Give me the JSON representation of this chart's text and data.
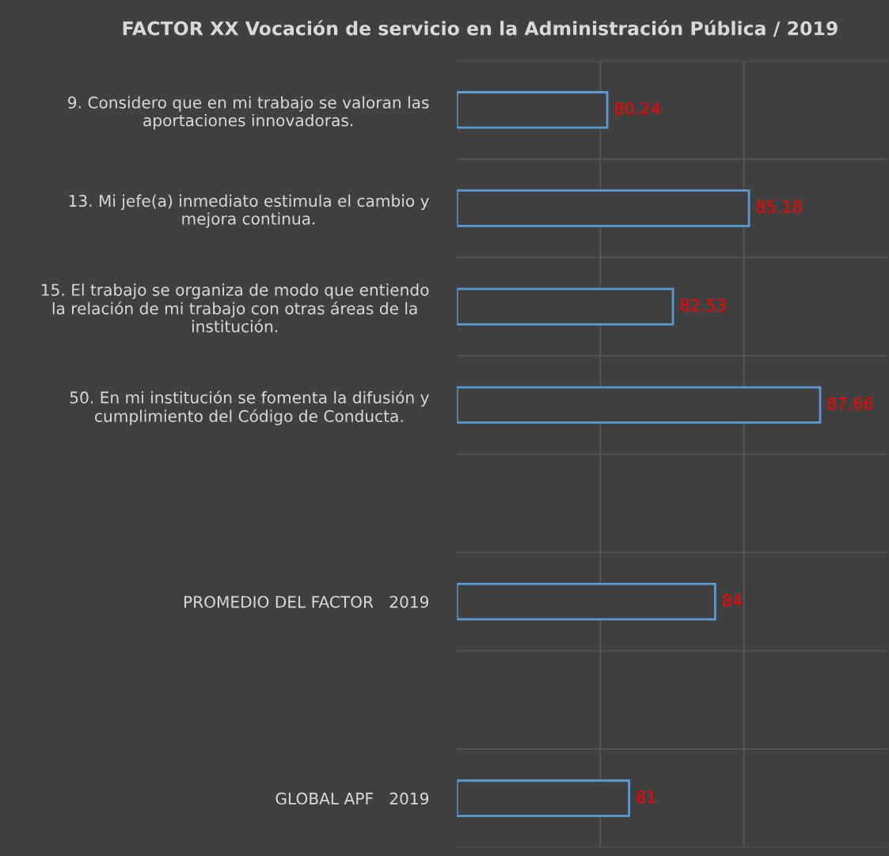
{
  "chart_data": {
    "type": "bar",
    "orientation": "horizontal",
    "title": "FACTOR XX Vocación de servicio en la Administración Pública / 2019",
    "categories": [
      "9. Considero que en mi trabajo se valoran las\naportaciones innovadoras.",
      "13. Mi jefe(a) inmediato estimula el cambio y\nmejora continua.",
      "15. El trabajo se organiza de modo que entiendo\nla relación de mi trabajo con otras áreas de la\ninstitución.",
      "50. En mi institución se fomenta la difusión y\ncumplimiento del Código de Conducta.",
      null,
      "PROMEDIO DEL FACTOR   2019",
      null,
      "GLOBAL APF   2019"
    ],
    "values": [
      80.24,
      85.18,
      82.53,
      87.66,
      null,
      84,
      null,
      81
    ],
    "color": "#5b9bd5",
    "xlim": [
      75,
      90
    ],
    "xticks": [
      {
        "value": 80,
        "label": null
      },
      {
        "value": 85,
        "label": null
      }
    ],
    "tick_labels": "y",
    "grid": true,
    "data_labels": true
  }
}
